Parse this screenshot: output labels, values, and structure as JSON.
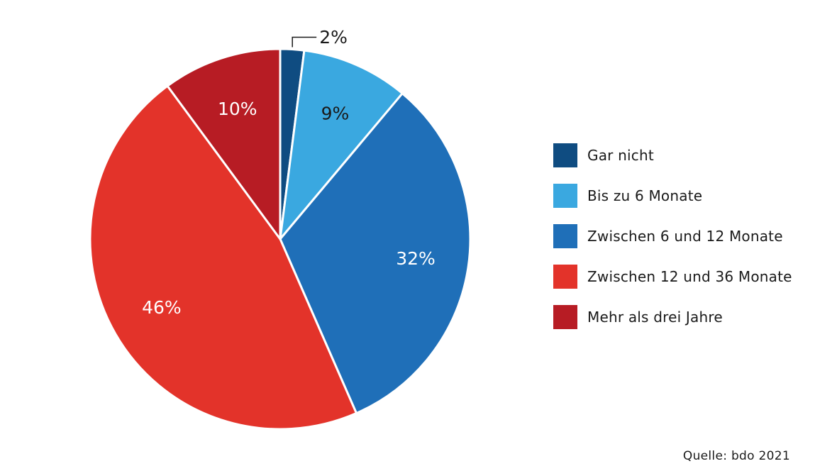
{
  "chart_data": {
    "type": "pie",
    "title": "",
    "categories": [
      "Gar nicht",
      "Bis zu 6 Monate",
      "Zwischen 6 und 12 Monate",
      "Zwischen 12 und 36 Monate",
      "Mehr als drei Jahre"
    ],
    "values": [
      2,
      9,
      32,
      46,
      10
    ],
    "value_labels": [
      "2%",
      "9%",
      "32%",
      "46%",
      "10%"
    ],
    "colors": [
      "#0f4c81",
      "#3aa8e0",
      "#1f6fb8",
      "#e3332a",
      "#b71c24"
    ],
    "label_colors": [
      "#1a1a1a",
      "#1a1a1a",
      "#ffffff",
      "#ffffff",
      "#ffffff"
    ],
    "legend_placement": "right"
  },
  "legend": {
    "items": [
      {
        "label": "Gar nicht",
        "color": "#0f4c81"
      },
      {
        "label": "Bis zu 6 Monate",
        "color": "#3aa8e0"
      },
      {
        "label": "Zwischen 6 und 12 Monate",
        "color": "#1f6fb8"
      },
      {
        "label": "Zwischen 12 und 36 Monate",
        "color": "#e3332a"
      },
      {
        "label": "Mehr als drei Jahre",
        "color": "#b71c24"
      }
    ]
  },
  "source": "Quelle: bdo 2021"
}
